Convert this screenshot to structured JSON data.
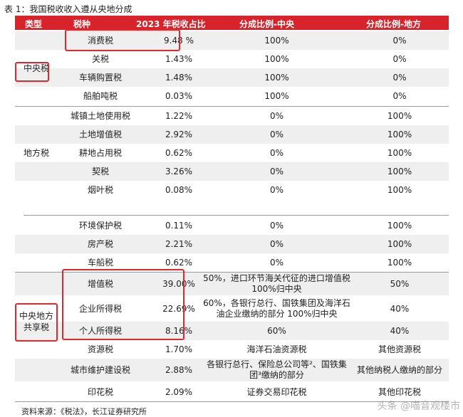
{
  "caption": "表 1：我国税收收入遵从央地分成",
  "headers": [
    "类型",
    "税种",
    "2023 年税收占比",
    "分成比例-中央",
    "分成比例-地方"
  ],
  "groups": [
    {
      "category": "中央税",
      "rows": [
        {
          "tax": "消费税",
          "share": "9.48 %",
          "central": "100%",
          "local": "0%"
        },
        {
          "tax": "关税",
          "share": "1.43%",
          "central": "100%",
          "local": "0%"
        },
        {
          "tax": "车辆购置税",
          "share": "1.48%",
          "central": "100%",
          "local": "0%"
        },
        {
          "tax": "船舶吨税",
          "share": "0.03%",
          "central": "100%",
          "local": "0%"
        }
      ]
    },
    {
      "category": "地方税",
      "rows": [
        {
          "tax": "城镇土地使用税",
          "share": "1.22%",
          "central": "0%",
          "local": "100%"
        },
        {
          "tax": "土地增值税",
          "share": "2.92%",
          "central": "0%",
          "local": "100%"
        },
        {
          "tax": "耕地占用税",
          "share": "0.62%",
          "central": "0%",
          "local": "100%"
        },
        {
          "tax": "契税",
          "share": "3.26%",
          "central": "0%",
          "local": "100%"
        },
        {
          "tax": "烟叶税",
          "share": "0.08%",
          "central": "0%",
          "local": "100%"
        }
      ]
    },
    {
      "category": "",
      "rows": [
        {
          "tax": "环境保护税",
          "share": "0.11%",
          "central": "0%",
          "local": "100%"
        },
        {
          "tax": "房产税",
          "share": "2.21%",
          "central": "0%",
          "local": "100%"
        },
        {
          "tax": "车船税",
          "share": "0.62%",
          "central": "0%",
          "local": "100%"
        }
      ]
    },
    {
      "category": "中央地方\n共享税",
      "rows": [
        {
          "tax": "增值税",
          "share": "39.00%",
          "central": "50%，进口环节海关代征的进口增值税\n100%归中央",
          "local": "50%"
        },
        {
          "tax": "企业所得税",
          "share": "22.69%",
          "central": "60%，各银行总行、国铁集团及海洋石\n油企业缴纳的部分 100%归中央",
          "local": "40%"
        },
        {
          "tax": "个人所得税",
          "share": "8.16%",
          "central": "60%",
          "local": "40%"
        },
        {
          "tax": "资源税",
          "share": "1.70%",
          "central": "海洋石油资源税",
          "local": "其他资源税"
        },
        {
          "tax": "城市维护建设税",
          "share": "2.88%",
          "central": "各银行总行、保险总公司等²、国铁集\n团³缴纳的部分",
          "local": "其他纳税人缴纳的部分"
        },
        {
          "tax": "印花税",
          "share": "2.09%",
          "central": "证券交易印花税",
          "local": "其他印花税"
        }
      ]
    }
  ],
  "source": "资料来源：《税法》，长江证券研究所",
  "watermark": "头条 @喵音观楼市"
}
